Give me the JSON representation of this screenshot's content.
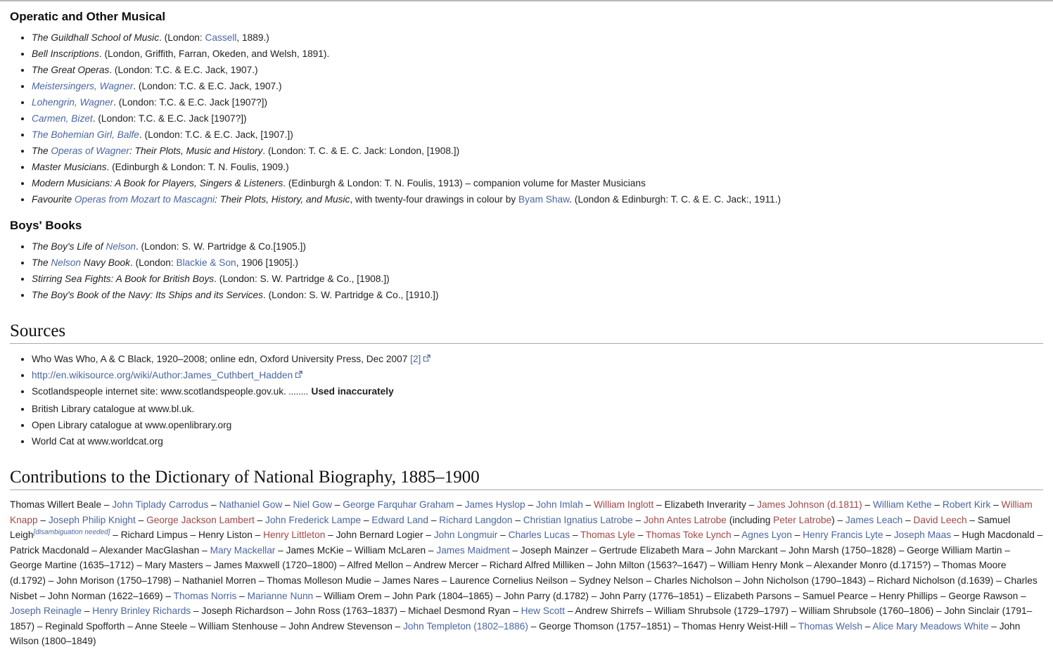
{
  "operatic": {
    "title": "Operatic and Other Musical",
    "items": [
      [
        {
          "t": "The Guildhall School of Music",
          "s": "i"
        },
        {
          "t": ". (London: ",
          "s": ""
        },
        {
          "t": "Cassell",
          "s": "l"
        },
        {
          "t": ", 1889.)",
          "s": ""
        }
      ],
      [
        {
          "t": "Bell Inscriptions",
          "s": "i"
        },
        {
          "t": ". (London, Griffith, Farran, Okeden, and Welsh, 1891).",
          "s": ""
        }
      ],
      [
        {
          "t": "The Great Operas",
          "s": "i"
        },
        {
          "t": ". (London: T.C. & E.C. Jack, 1907.)",
          "s": ""
        }
      ],
      [
        {
          "t": "Meistersingers, Wagner",
          "s": "il"
        },
        {
          "t": ". (London: T.C. & E.C. Jack, 1907.)",
          "s": ""
        }
      ],
      [
        {
          "t": "Lohengrin, Wagner",
          "s": "il"
        },
        {
          "t": ". (London: T.C. & E.C. Jack [1907?])",
          "s": ""
        }
      ],
      [
        {
          "t": "Carmen, Bizet",
          "s": "il"
        },
        {
          "t": ". (London: T.C. & E.C. Jack [1907?])",
          "s": ""
        }
      ],
      [
        {
          "t": "The Bohemian Girl, Balfe",
          "s": "il"
        },
        {
          "t": ". (London: T.C. & E.C. Jack, [1907.])",
          "s": ""
        }
      ],
      [
        {
          "t": "The ",
          "s": "i"
        },
        {
          "t": "Operas of Wagner",
          "s": "il"
        },
        {
          "t": ": Their Plots, Music and History",
          "s": "i"
        },
        {
          "t": ". (London: T. C. & E. C. Jack: London, [1908.])",
          "s": ""
        }
      ],
      [
        {
          "t": "Master Musicians",
          "s": "i"
        },
        {
          "t": ". (Edinburgh & London: T. N. Foulis, 1909.)",
          "s": ""
        }
      ],
      [
        {
          "t": "Modern Musicians: A Book for Players, Singers & Listeners",
          "s": "i"
        },
        {
          "t": ". (Edinburgh & London: T. N. Foulis, 1913) – companion volume for Master Musicians",
          "s": ""
        }
      ],
      [
        {
          "t": "Favourite ",
          "s": "i"
        },
        {
          "t": "Operas from Mozart to Mascagni",
          "s": "il"
        },
        {
          "t": ": Their Plots, History, and Music",
          "s": "i"
        },
        {
          "t": ", with twenty-four drawings in colour by ",
          "s": ""
        },
        {
          "t": "Byam Shaw",
          "s": "l"
        },
        {
          "t": ". (London & Edinburgh: T. C. & E. C. Jack:, 1911.)",
          "s": ""
        }
      ]
    ]
  },
  "boys": {
    "title": "Boys' Books",
    "items": [
      [
        {
          "t": "The Boy's Life of ",
          "s": "i"
        },
        {
          "t": "Nelson",
          "s": "il"
        },
        {
          "t": ". (London: S. W. Partridge & Co.[1905.])",
          "s": ""
        }
      ],
      [
        {
          "t": "The ",
          "s": "i"
        },
        {
          "t": "Nelson",
          "s": "il"
        },
        {
          "t": " Navy Book",
          "s": "i"
        },
        {
          "t": ". (London: ",
          "s": ""
        },
        {
          "t": "Blackie & Son",
          "s": "l"
        },
        {
          "t": ", 1906 [1905].)",
          "s": ""
        }
      ],
      [
        {
          "t": "Stirring Sea Fights: A Book for British Boys",
          "s": "i"
        },
        {
          "t": ". (London: S. W. Partridge & Co., [1908.])",
          "s": ""
        }
      ],
      [
        {
          "t": "The Boy's Book of the Navy: Its Ships and its Services",
          "s": "i"
        },
        {
          "t": ". (London: S. W. Partridge & Co., [1910.])",
          "s": ""
        }
      ]
    ]
  },
  "sources": {
    "title": "Sources",
    "items": [
      [
        {
          "t": "Who Was Who, A & C Black, 1920–2008; online edn, Oxford University Press, Dec 2007 ",
          "s": ""
        },
        {
          "t": "[2]",
          "s": "l"
        },
        {
          "icon": "external-link-icon"
        }
      ],
      [
        {
          "t": "http://en.wikisource.org/wiki/Author:James_Cuthbert_Hadden",
          "s": "l"
        },
        {
          "icon": "external-link-icon"
        }
      ],
      [
        {
          "t": "Scotlandspeople internet site: www.scotlandspeople.gov.uk. ",
          "s": ""
        },
        {
          "t": "........",
          "s": "dots"
        },
        {
          "t": " Used inaccurately",
          "s": "b"
        }
      ],
      [
        {
          "t": "British Library catalogue at www.bl.uk.",
          "s": ""
        }
      ],
      [
        {
          "t": "Open Library catalogue at www.openlibrary.org",
          "s": ""
        }
      ],
      [
        {
          "t": "World Cat at www.worldcat.org",
          "s": ""
        }
      ]
    ]
  },
  "contributions": {
    "title": "Contributions to the Dictionary of National Biography, 1885–1900",
    "separator": " – ",
    "names": [
      {
        "t": "Thomas Willert Beale",
        "s": ""
      },
      {
        "t": "John Tiplady Carrodus",
        "s": "l"
      },
      {
        "t": "Nathaniel Gow",
        "s": "l"
      },
      {
        "t": "Niel Gow",
        "s": "l"
      },
      {
        "t": "George Farquhar Graham",
        "s": "l"
      },
      {
        "t": "James Hyslop",
        "s": "l"
      },
      {
        "t": "John Imlah",
        "s": "l"
      },
      {
        "t": "William Inglott",
        "s": "r"
      },
      {
        "t": "Elizabeth Inverarity",
        "s": ""
      },
      {
        "t": "James Johnson (d.1811)",
        "s": "r"
      },
      {
        "t": "William Kethe",
        "s": "l"
      },
      {
        "t": "Robert Kirk",
        "s": "l"
      },
      {
        "t": "William Knapp",
        "s": "r"
      },
      {
        "t": "Joseph Philip Knight",
        "s": "l"
      },
      {
        "t": "George Jackson Lambert",
        "s": "r"
      },
      {
        "t": "John Frederick Lampe",
        "s": "l"
      },
      {
        "t": "Edward Land",
        "s": "l"
      },
      {
        "t": "Richard Langdon",
        "s": "l"
      },
      {
        "t": "Christian Ignatius Latrobe",
        "s": "l"
      },
      [
        {
          "t": "John Antes Latrobe",
          "s": "r"
        },
        {
          "t": " (including ",
          "s": ""
        },
        {
          "t": "Peter Latrobe",
          "s": "r"
        },
        {
          "t": ")",
          "s": ""
        }
      ],
      {
        "t": "James Leach",
        "s": "l"
      },
      {
        "t": "David Leech",
        "s": "r"
      },
      {
        "t": "Samuel Leigh",
        "s": "",
        "sup": "[disambiguation needed]"
      },
      {
        "t": "Richard Limpus",
        "s": ""
      },
      {
        "t": "Henry Liston",
        "s": ""
      },
      {
        "t": "Henry Littleton",
        "s": "r"
      },
      {
        "t": "John Bernard Logier",
        "s": ""
      },
      {
        "t": "John Longmuir",
        "s": "l"
      },
      {
        "t": "Charles Lucas",
        "s": "l"
      },
      {
        "t": "Thomas Lyle",
        "s": "r"
      },
      {
        "t": "Thomas Toke Lynch",
        "s": "r"
      },
      {
        "t": "Agnes Lyon",
        "s": "l"
      },
      {
        "t": "Henry Francis Lyte",
        "s": "l"
      },
      {
        "t": "Joseph Maas",
        "s": "l"
      },
      {
        "t": "Hugh Macdonald",
        "s": ""
      },
      {
        "t": "Patrick Macdonald",
        "s": ""
      },
      {
        "t": "Alexander MacGlashan",
        "s": ""
      },
      {
        "t": "Mary Mackellar",
        "s": "l"
      },
      {
        "t": "James McKie",
        "s": ""
      },
      {
        "t": "William McLaren",
        "s": ""
      },
      {
        "t": "James Maidment",
        "s": "l"
      },
      {
        "t": "Joseph Mainzer",
        "s": ""
      },
      {
        "t": "Gertrude Elizabeth Mara",
        "s": ""
      },
      {
        "t": "John Marckant",
        "s": ""
      },
      {
        "t": "John Marsh (1750–1828)",
        "s": ""
      },
      {
        "t": "George William Martin",
        "s": ""
      },
      {
        "t": "George Martine (1635–1712)",
        "s": ""
      },
      {
        "t": "Mary Masters",
        "s": ""
      },
      {
        "t": "James Maxwell (1720–1800)",
        "s": ""
      },
      {
        "t": "Alfred Mellon",
        "s": ""
      },
      {
        "t": "Andrew Mercer",
        "s": ""
      },
      {
        "t": "Richard Alfred Milliken",
        "s": ""
      },
      {
        "t": "John Milton (1563?–1647)",
        "s": ""
      },
      {
        "t": "William Henry Monk",
        "s": ""
      },
      {
        "t": "Alexander Monro (d.1715?)",
        "s": ""
      },
      {
        "t": "Thomas Moore (d.1792)",
        "s": ""
      },
      {
        "t": "John Morison (1750–1798)",
        "s": ""
      },
      {
        "t": "Nathaniel Morren",
        "s": ""
      },
      {
        "t": "Thomas Molleson Mudie",
        "s": ""
      },
      {
        "t": "James Nares",
        "s": ""
      },
      {
        "t": "Laurence Cornelius Neilson",
        "s": ""
      },
      {
        "t": "Sydney Nelson",
        "s": ""
      },
      {
        "t": "Charles Nicholson",
        "s": ""
      },
      {
        "t": "John Nicholson (1790–1843)",
        "s": ""
      },
      {
        "t": "Richard Nicholson (d.1639)",
        "s": ""
      },
      {
        "t": "Charles Nisbet",
        "s": ""
      },
      {
        "t": "John Norman (1622–1669)",
        "s": ""
      },
      {
        "t": "Thomas Norris",
        "s": "l"
      },
      {
        "t": "Marianne Nunn",
        "s": "l"
      },
      {
        "t": "William Orem",
        "s": ""
      },
      {
        "t": "John Park (1804–1865)",
        "s": ""
      },
      {
        "t": "John Parry (d.1782)",
        "s": ""
      },
      {
        "t": "John Parry (1776–1851)",
        "s": ""
      },
      {
        "t": "Elizabeth Parsons",
        "s": ""
      },
      {
        "t": "Samuel Pearce",
        "s": ""
      },
      {
        "t": "Henry Phillips",
        "s": ""
      },
      {
        "t": "George Rawson",
        "s": ""
      },
      {
        "t": "Joseph Reinagle",
        "s": "l"
      },
      {
        "t": "Henry Brinley Richards",
        "s": "l"
      },
      {
        "t": "Joseph Richardson",
        "s": ""
      },
      {
        "t": "John Ross (1763–1837)",
        "s": ""
      },
      {
        "t": "Michael Desmond Ryan",
        "s": ""
      },
      {
        "t": "Hew Scott",
        "s": "l"
      },
      {
        "t": "Andrew Shirrefs",
        "s": ""
      },
      {
        "t": "William Shrubsole (1729–1797)",
        "s": ""
      },
      {
        "t": "William Shrubsole (1760–1806)",
        "s": ""
      },
      {
        "t": "John Sinclair (1791–1857)",
        "s": ""
      },
      {
        "t": "Reginald Spofforth",
        "s": ""
      },
      {
        "t": "Anne Steele",
        "s": ""
      },
      {
        "t": "William Stenhouse",
        "s": ""
      },
      {
        "t": "John Andrew Stevenson",
        "s": ""
      },
      {
        "t": "John Templeton (1802–1886)",
        "s": "l"
      },
      {
        "t": "George Thomson (1757–1851)",
        "s": ""
      },
      {
        "t": "Thomas Henry Weist-Hill",
        "s": ""
      },
      {
        "t": "Thomas Welsh",
        "s": "l"
      },
      {
        "t": "Alice Mary Meadows White",
        "s": "l"
      },
      {
        "t": "John Wilson (1800–1849)",
        "s": ""
      }
    ]
  }
}
